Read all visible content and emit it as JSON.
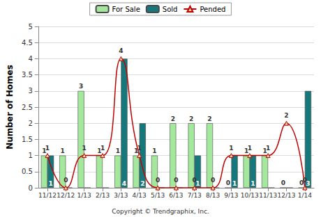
{
  "chart_data": {
    "type": "bar",
    "y_label": "Number of Homes",
    "annotations": [
      "Copyright © Trendgraphix, Inc."
    ],
    "categories": [
      "11/12",
      "12/12",
      "1/13",
      "2/13",
      "3/13",
      "4/13",
      "5/13",
      "6/13",
      "7/13",
      "8/13",
      "9/13",
      "10/13",
      "11/13",
      "12/13",
      "1/14"
    ],
    "series": [
      {
        "name": "For Sale",
        "type": "bar",
        "color": "#a3e89c",
        "values": [
          1,
          1,
          3,
          1,
          1,
          1,
          1,
          2,
          2,
          2,
          0,
          1,
          1,
          0,
          0
        ]
      },
      {
        "name": "Sold",
        "type": "bar",
        "color": "#17787c",
        "values": [
          1,
          0,
          0,
          0,
          4,
          2,
          0,
          0,
          1,
          0,
          1,
          1,
          0,
          0,
          3
        ]
      },
      {
        "name": "Pended",
        "type": "line",
        "color": "#c00000",
        "marker": "triangle",
        "line_style": "smooth",
        "values": [
          1,
          0,
          1,
          1,
          4,
          1,
          0,
          0,
          0,
          0,
          1,
          1,
          1,
          2,
          0
        ]
      }
    ],
    "ylim": [
      0,
      5
    ],
    "yticks": [
      0,
      0.5,
      1,
      1.5,
      2,
      2.5,
      3,
      3.5,
      4,
      4.5,
      5
    ],
    "grid": true,
    "legend": "top",
    "data_labels": true
  }
}
